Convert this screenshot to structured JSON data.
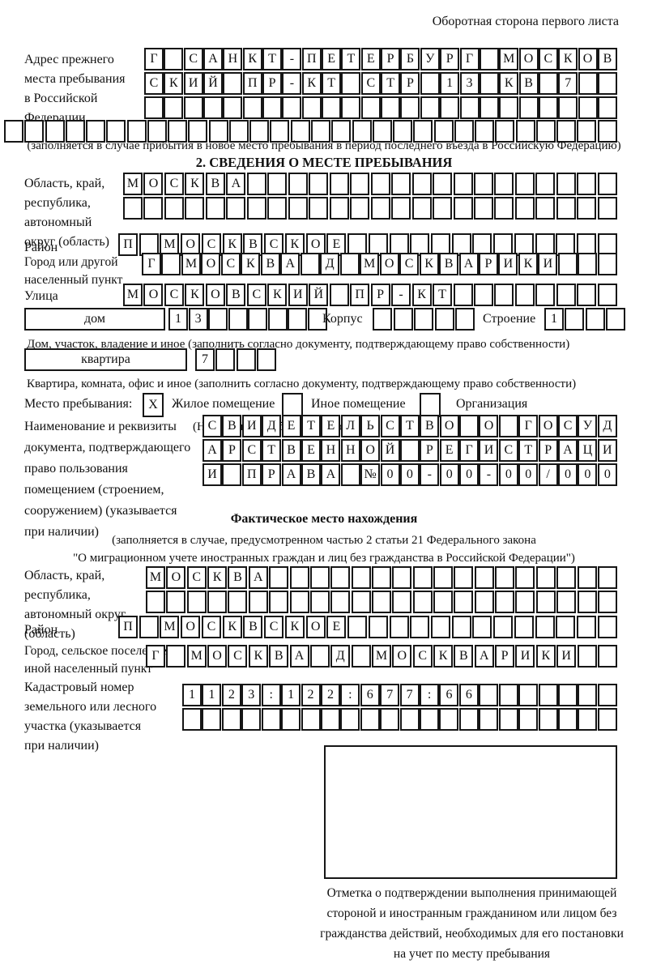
{
  "header": {
    "note": "Оборотная сторона первого листа"
  },
  "prev_address": {
    "label": [
      "Адрес прежнего",
      "места пребывания",
      "в Российской",
      "Федерации"
    ],
    "rows": [
      {
        "text": "Г САНКТ-ПЕТЕРБУРГ МОСКОВ",
        "cells": 24
      },
      {
        "text": "СКИЙ ПР-КТ СТР 13 КВ 7",
        "cells": 24
      },
      {
        "text": "",
        "cells": 24
      },
      {
        "text": "",
        "cells": 30
      }
    ],
    "note": "(заполняется в случае прибытия в новое место пребывания в период последнего въезда в Российскую Федерацию)"
  },
  "section2": {
    "title": "2. СВЕДЕНИЯ О МЕСТЕ ПРЕБЫВАНИЯ",
    "region": {
      "label": [
        "Область, край,",
        "республика,",
        "автономный",
        "округ (область)"
      ],
      "rows": [
        {
          "text": "МОСКВА",
          "cells": 24
        },
        {
          "text": "",
          "cells": 24
        }
      ]
    },
    "district": {
      "label": "Район",
      "row": {
        "text": "П МОСКВСКОЕ",
        "cells": 24
      }
    },
    "city": {
      "label": [
        "Город или другой",
        "населенный пункт"
      ],
      "row": {
        "text": "Г МОСКВА Д МОСКВАРИКИ",
        "cells": 24
      }
    },
    "street": {
      "label": "Улица",
      "row": {
        "text": "МОСКОВСКИЙ ПР-КТ",
        "cells": 24
      }
    },
    "house": {
      "box_label": "дом",
      "row": {
        "text": "13",
        "cells": 8
      },
      "korpus_label": "Корпус",
      "korpus_row": {
        "text": "",
        "cells": 5
      },
      "stroenie_label": "Строение",
      "stroenie_row": {
        "text": "1",
        "cells": 4
      },
      "note": "Дом, участок, владение и иное (заполнить согласно документу, подтверждающему право собственности)"
    },
    "apartment": {
      "box_label": "квартира",
      "row": {
        "text": "7",
        "cells": 4
      },
      "note": "Квартира, комната, офис и иное (заполнить согласно документу, подтверждающему право собственности)"
    },
    "stay_type": {
      "label": "Место пребывания:",
      "options": [
        {
          "box": "X",
          "label": "Жилое помещение"
        },
        {
          "box": "",
          "label": "Иное помещение"
        },
        {
          "box": "",
          "label": "Организация"
        }
      ],
      "note": "(Необходимо выбрать нужное)"
    },
    "document": {
      "label": [
        "Наименование и реквизиты",
        "документа, подтверждающего",
        "право пользования",
        "помещением (строением,",
        "сооружением) (указывается",
        "при наличии)"
      ],
      "rows": [
        {
          "text": "СВИДЕТЕЛЬСТВО О ГОСУД",
          "cells": 21
        },
        {
          "text": "АРСТВЕННОЙ РЕГИСТРАЦИ",
          "cells": 21
        },
        {
          "text": "И ПРАВА №00-00-00/000",
          "cells": 21
        }
      ]
    }
  },
  "actual_location": {
    "title": "Фактическое место нахождения",
    "note": [
      "(заполняется в случае, предусмотренном частью 2 статьи 21 Федерального закона",
      "\"О миграционном учете иностранных граждан и лиц без гражданства в Российской Федерации\")"
    ],
    "region": {
      "label": [
        "Область, край,",
        "республика,",
        "автономный округ",
        "(область)"
      ],
      "rows": [
        {
          "text": "МОСКВА",
          "cells": 23
        },
        {
          "text": "",
          "cells": 23
        }
      ]
    },
    "district": {
      "label": "Район",
      "row": {
        "text": "П МОСКВСКОЕ",
        "cells": 24
      }
    },
    "city": {
      "label": [
        "Город, сельское поселение,",
        "иной населенный пункт"
      ],
      "row": {
        "text": "Г МОСКВА Д МОСКВАРИКИ",
        "cells": 23
      }
    },
    "cadastre": {
      "label": [
        "Кадастровый номер",
        "земельного или лесного",
        "участка (указывается",
        "при наличии)"
      ],
      "rows": [
        {
          "text": "1123:122:677:66",
          "cells": 22
        },
        {
          "text": "",
          "cells": 22
        }
      ]
    },
    "stamp_note": [
      "Отметка о подтверждении выполнения принимающей",
      "стороной и иностранным гражданином или лицом без",
      "гражданства действий, необходимых для его постановки",
      "на учет по месту пребывания"
    ]
  }
}
